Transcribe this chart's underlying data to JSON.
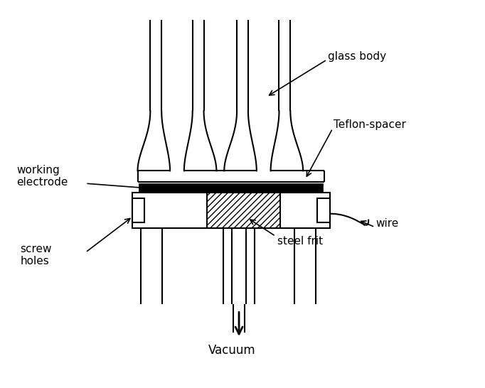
{
  "background_color": "#ffffff",
  "line_color": "#000000",
  "fig_width": 6.82,
  "fig_height": 5.46,
  "dpi": 100,
  "labels": {
    "glass_body": "glass body",
    "teflon_spacer": "Teflon-spacer",
    "working_electrode": "working\nelectrode",
    "wire": "wire",
    "steel_frit": "steel frit",
    "screw_holes": "screw\nholes",
    "vacuum": "Vacuum"
  }
}
